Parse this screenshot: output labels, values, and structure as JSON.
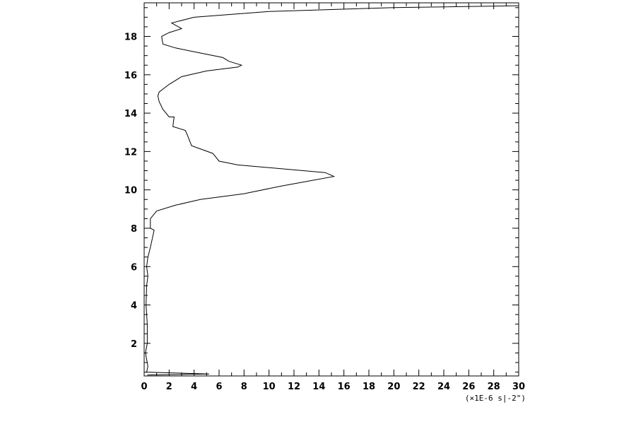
{
  "chart_data": {
    "type": "line",
    "title": "",
    "xlabel": "",
    "ylabel": "",
    "x_unit_label": "(×1E-6 s|-2\")",
    "xlim": [
      0,
      30
    ],
    "ylim": [
      0.3,
      19.75
    ],
    "x_ticks": [
      0,
      2,
      4,
      6,
      8,
      10,
      12,
      14,
      16,
      18,
      20,
      22,
      24,
      26,
      28,
      30
    ],
    "y_ticks": [
      2,
      4,
      6,
      8,
      10,
      12,
      14,
      16,
      18
    ],
    "x_minor_step": 1,
    "y_minor_step": 0.5,
    "grid": false,
    "legend": "none",
    "series": [
      {
        "color": "#000000",
        "points": [
          [
            0.25,
            0.35
          ],
          [
            5.2,
            0.4
          ],
          [
            0.2,
            0.5
          ],
          [
            0.3,
            0.8
          ],
          [
            0.1,
            1.5
          ],
          [
            0.25,
            2.0
          ],
          [
            0.25,
            3.0
          ],
          [
            0.15,
            4.0
          ],
          [
            0.2,
            5.0
          ],
          [
            0.3,
            5.5
          ],
          [
            0.2,
            6.0
          ],
          [
            0.3,
            6.5
          ],
          [
            0.5,
            7.0
          ],
          [
            0.8,
            7.9
          ],
          [
            0.5,
            8.0
          ],
          [
            0.5,
            8.5
          ],
          [
            1.0,
            8.9
          ],
          [
            2.5,
            9.2
          ],
          [
            4.5,
            9.5
          ],
          [
            8.0,
            9.8
          ],
          [
            11.0,
            10.2
          ],
          [
            15.2,
            10.7
          ],
          [
            14.5,
            10.9
          ],
          [
            7.5,
            11.3
          ],
          [
            6.0,
            11.5
          ],
          [
            5.5,
            11.9
          ],
          [
            3.8,
            12.3
          ],
          [
            3.5,
            12.8
          ],
          [
            3.3,
            13.1
          ],
          [
            2.3,
            13.3
          ],
          [
            2.4,
            13.8
          ],
          [
            2.0,
            13.8
          ],
          [
            1.5,
            14.2
          ],
          [
            1.2,
            14.6
          ],
          [
            1.1,
            14.9
          ],
          [
            1.2,
            15.1
          ],
          [
            2.0,
            15.5
          ],
          [
            3.0,
            15.9
          ],
          [
            5.0,
            16.2
          ],
          [
            7.5,
            16.4
          ],
          [
            7.8,
            16.5
          ],
          [
            6.8,
            16.7
          ],
          [
            6.3,
            16.9
          ],
          [
            4.0,
            17.2
          ],
          [
            2.5,
            17.4
          ],
          [
            1.5,
            17.6
          ],
          [
            1.4,
            18.0
          ],
          [
            2.0,
            18.2
          ],
          [
            3.0,
            18.4
          ],
          [
            2.2,
            18.7
          ],
          [
            4.0,
            19.0
          ],
          [
            10.0,
            19.3
          ],
          [
            20.0,
            19.5
          ],
          [
            30.0,
            19.6
          ]
        ]
      }
    ]
  }
}
